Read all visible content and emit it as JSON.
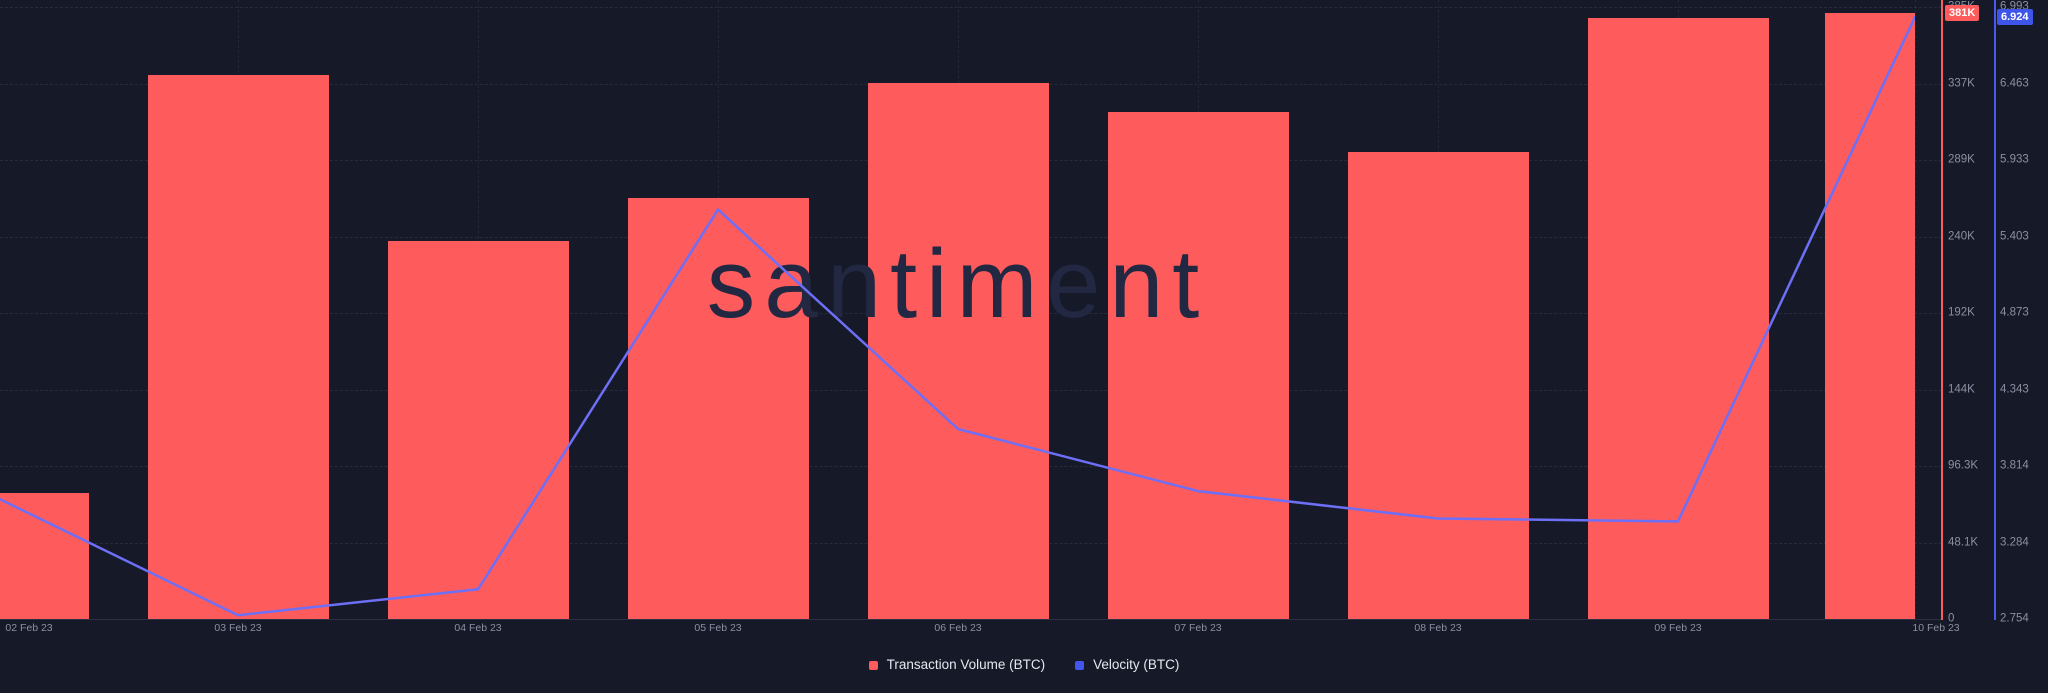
{
  "chart_data": {
    "type": "combo-bar-line",
    "categories": [
      "02 Feb 23",
      "03 Feb 23",
      "04 Feb 23",
      "05 Feb 23",
      "06 Feb 23",
      "07 Feb 23",
      "08 Feb 23",
      "09 Feb 23",
      "10 Feb 23"
    ],
    "series": [
      {
        "name": "Transaction Volume (BTC)",
        "type": "bar",
        "color": "#fd5b5c",
        "axis": "volume",
        "values": [
          79000,
          342000,
          238000,
          265000,
          337000,
          319000,
          294000,
          378000,
          381000
        ]
      },
      {
        "name": "Velocity (BTC)",
        "type": "line",
        "color": "#6d6ff6",
        "axis": "velocity",
        "values": [
          3.59,
          2.78,
          2.96,
          5.59,
          4.07,
          3.64,
          3.45,
          3.43,
          6.924
        ]
      }
    ],
    "axes": {
      "volume": {
        "side": "right",
        "line_color": "#fd5b5c",
        "min": 0,
        "max": 385000,
        "ticks": [
          "385K",
          "337K",
          "289K",
          "240K",
          "192K",
          "144K",
          "96.3K",
          "48.1K",
          "0"
        ]
      },
      "velocity": {
        "side": "right-outer",
        "line_color": "#4a5af0",
        "min": 2.754,
        "max": 6.993,
        "ticks": [
          "6.993",
          "6.463",
          "5.933",
          "5.403",
          "4.873",
          "4.343",
          "3.814",
          "3.284",
          "2.754"
        ]
      }
    },
    "badges": {
      "volume": "381K",
      "velocity": "6.924"
    },
    "legend": [
      {
        "label": "Transaction Volume (BTC)",
        "color": "#fd5b5c"
      },
      {
        "label": "Velocity (BTC)",
        "color": "#4355ee"
      }
    ],
    "watermark": "santiment",
    "grid": "dashed",
    "background": "#161927"
  }
}
